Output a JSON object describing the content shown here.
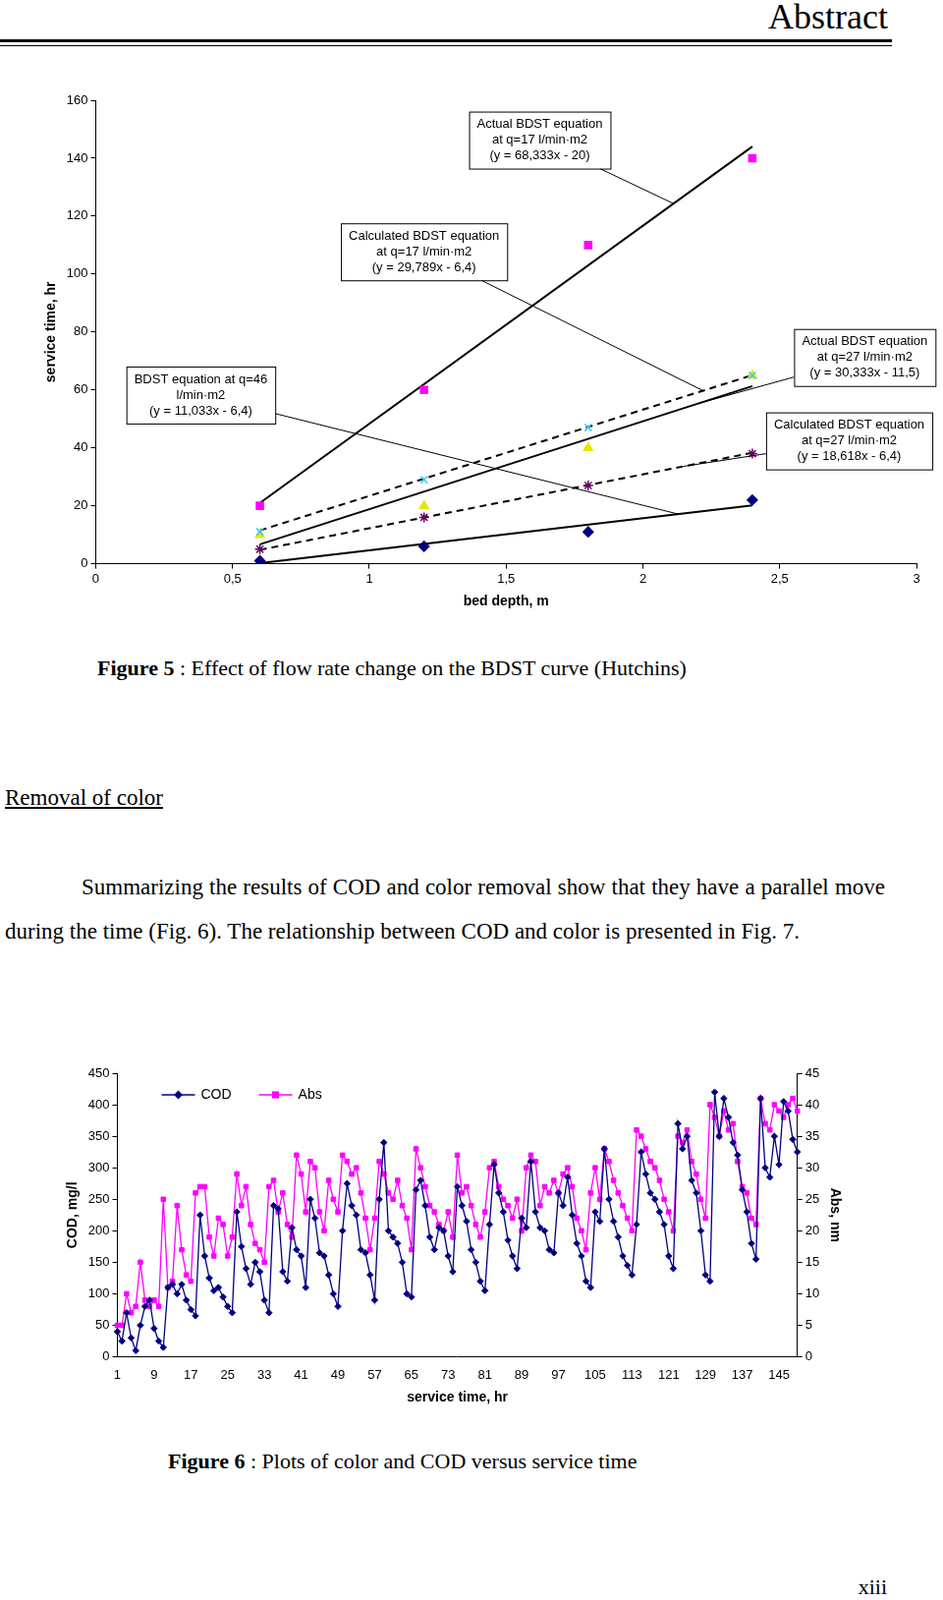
{
  "document": {
    "header": "Abstract",
    "figure_5_caption": {
      "label": "Figure 5",
      "text": ": Effect of flow rate change on the BDST curve (Hutchins)"
    },
    "section_heading": "Removal of color",
    "paragraph": "Summarizing the results of COD and color removal show that they have a parallel move during the time (Fig. 6). The relationship between COD and color is presented in Fig. 7.",
    "figure_6_caption": {
      "label": "Figure 6",
      "text": ": Plots of color and COD versus service time"
    },
    "page_number": "xiii"
  },
  "chart_data": [
    {
      "type": "scatter",
      "x_label": "bed depth, m",
      "y_label": "service time, hr",
      "xlim": [
        0,
        3
      ],
      "xticks": [
        0,
        {
          "value": 0.5,
          "label": "0,5"
        },
        1,
        {
          "value": 1.5,
          "label": "1,5"
        },
        2,
        {
          "value": 2.5,
          "label": "2,5"
        },
        3
      ],
      "ylim": [
        0,
        160
      ],
      "yticks": [
        0,
        20,
        40,
        60,
        80,
        100,
        120,
        140,
        160
      ],
      "grid": false,
      "series": [
        {
          "type": "scatter",
          "marker": "square",
          "color": "#ff00ff",
          "x": [
            0.6,
            1.2,
            1.8,
            2.4
          ],
          "values": [
            20,
            60,
            110,
            140
          ]
        },
        {
          "type": "scatter",
          "marker": "x",
          "color": "#33ccff",
          "x": [
            0.6,
            1.2,
            1.8,
            2.4
          ],
          "values": [
            11,
            29,
            47,
            65
          ]
        },
        {
          "type": "scatter",
          "marker": "triangle",
          "color": "#e6e600",
          "x": [
            0.6,
            1.2,
            1.8,
            2.4
          ],
          "values": [
            10,
            20,
            40,
            65
          ]
        },
        {
          "type": "scatter",
          "marker": "asterisk",
          "color": "#660066",
          "x": [
            0.6,
            1.2,
            1.8,
            2.4
          ],
          "values": [
            5,
            16,
            27,
            38
          ]
        },
        {
          "type": "scatter",
          "marker": "diamond",
          "color": "#000080",
          "x": [
            0.6,
            1.2,
            1.8,
            2.4
          ],
          "values": [
            1,
            6,
            11,
            22
          ]
        },
        {
          "type": "line",
          "line_style": "solid",
          "color": "#000000",
          "x": [
            0.6,
            2.4
          ],
          "values": [
            21,
            144
          ]
        },
        {
          "type": "line",
          "line_style": "dashed",
          "color": "#000000",
          "x": [
            0.6,
            2.4
          ],
          "values": [
            11.5,
            65.1
          ]
        },
        {
          "type": "line",
          "line_style": "solid",
          "color": "#000000",
          "x": [
            0.6,
            2.4
          ],
          "values": [
            6.7,
            61.3
          ]
        },
        {
          "type": "line",
          "line_style": "dashed",
          "color": "#000000",
          "x": [
            0.6,
            2.4
          ],
          "values": [
            4.8,
            38.3
          ]
        },
        {
          "type": "line",
          "line_style": "solid",
          "color": "#000000",
          "x": [
            0.6,
            2.4
          ],
          "values": [
            0.2,
            20.1
          ]
        }
      ],
      "annotations": [
        {
          "text": [
            "Actual BDST equation",
            "at q=17 l/min·m2",
            "(y = 68,333x - 20)"
          ]
        },
        {
          "text": [
            "Calculated BDST equation",
            "at q=17 l/min·m2",
            "(y = 29,789x - 6,4)"
          ]
        },
        {
          "text": [
            "BDST equation at q=46",
            "l/min·m2",
            "(y = 11,033x - 6,4)"
          ]
        },
        {
          "text": [
            "Actual BDST equation",
            "at q=27 l/min·m2",
            "(y = 30,333x - 11,5)"
          ]
        },
        {
          "text": [
            "Calculated BDST equation",
            "at q=27 l/min·m2",
            "(y = 18,618x - 6,4)"
          ]
        }
      ]
    },
    {
      "type": "line",
      "x_label": "service time, hr",
      "y_label": "COD, mg/l",
      "y2_label": "Abs, nm",
      "categories": [
        1,
        null,
        null,
        null,
        null,
        null,
        null,
        null,
        9,
        null,
        null,
        null,
        null,
        null,
        null,
        null,
        17,
        null,
        null,
        null,
        null,
        null,
        null,
        null,
        25,
        null,
        null,
        null,
        null,
        null,
        null,
        null,
        33,
        null,
        null,
        null,
        null,
        null,
        null,
        null,
        41,
        null,
        null,
        null,
        null,
        null,
        null,
        null,
        49,
        null,
        null,
        null,
        null,
        null,
        null,
        null,
        57,
        null,
        null,
        null,
        null,
        null,
        null,
        null,
        65,
        null,
        null,
        null,
        null,
        null,
        null,
        null,
        73,
        null,
        null,
        null,
        null,
        null,
        null,
        null,
        81,
        null,
        null,
        null,
        null,
        null,
        null,
        null,
        89,
        null,
        null,
        null,
        null,
        null,
        null,
        null,
        97,
        null,
        null,
        null,
        null,
        null,
        null,
        null,
        105,
        null,
        null,
        null,
        null,
        null,
        null,
        null,
        113,
        null,
        null,
        null,
        null,
        null,
        null,
        null,
        121,
        null,
        null,
        null,
        null,
        null,
        null,
        null,
        129,
        null,
        null,
        null,
        null,
        null,
        null,
        null,
        137,
        null,
        null,
        null,
        null,
        null,
        null,
        null,
        145,
        null,
        null,
        null,
        null
      ],
      "ylim": [
        0,
        450
      ],
      "yticks": [
        0,
        50,
        100,
        150,
        200,
        250,
        300,
        350,
        400,
        450
      ],
      "y2lim": [
        0,
        45
      ],
      "y2ticks": [
        0,
        5,
        10,
        15,
        20,
        25,
        30,
        35,
        40,
        45
      ],
      "grid": false,
      "legend": "upper left",
      "series": [
        {
          "name": "COD",
          "color": "#000080",
          "marker": "diamond",
          "line_style": "solid",
          "values": [
            40,
            25,
            70,
            30,
            10,
            50,
            80,
            90,
            45,
            25,
            15,
            110,
            115,
            100,
            115,
            90,
            75,
            65,
            225,
            160,
            125,
            105,
            110,
            95,
            80,
            70,
            230,
            175,
            140,
            115,
            150,
            135,
            90,
            70,
            240,
            235,
            135,
            120,
            205,
            170,
            160,
            110,
            250,
            220,
            165,
            160,
            130,
            100,
            80,
            200,
            275,
            240,
            225,
            170,
            165,
            130,
            90,
            250,
            340,
            200,
            190,
            180,
            150,
            100,
            95,
            265,
            280,
            240,
            190,
            170,
            205,
            200,
            160,
            135,
            270,
            240,
            215,
            170,
            150,
            120,
            105,
            210,
            305,
            260,
            230,
            185,
            160,
            140,
            220,
            205,
            310,
            230,
            205,
            200,
            170,
            165,
            260,
            240,
            285,
            225,
            180,
            160,
            120,
            110,
            230,
            215,
            330,
            250,
            215,
            190,
            160,
            145,
            130,
            210,
            325,
            290,
            260,
            250,
            230,
            210,
            160,
            140,
            370,
            330,
            350,
            280,
            260,
            200,
            130,
            120,
            420,
            350,
            410,
            380,
            340,
            320,
            265,
            230,
            180,
            155,
            410,
            300,
            285,
            350,
            305,
            405,
            390,
            345,
            325
          ]
        },
        {
          "name": "Abs",
          "color": "#ff00ff",
          "marker": "square",
          "line_style": "solid",
          "axis": "y2",
          "values": [
            5,
            5,
            10,
            7,
            8,
            15,
            9,
            8,
            9,
            8,
            25,
            11,
            12,
            24,
            17,
            13,
            12,
            26,
            27,
            27,
            19,
            16,
            22,
            21,
            16,
            19,
            29,
            24,
            27,
            21,
            18,
            17,
            15,
            27,
            28,
            23,
            26,
            21,
            19,
            32,
            29,
            23,
            31,
            30,
            23,
            20,
            28,
            25,
            23,
            32,
            31,
            29,
            30,
            26,
            22,
            17,
            22,
            31,
            29,
            26,
            25,
            28,
            24,
            22,
            17,
            33,
            30,
            27,
            24,
            23,
            21,
            20,
            23,
            19,
            32,
            26,
            27,
            24,
            21,
            19,
            23,
            30,
            31,
            27,
            25,
            24,
            22,
            25,
            20,
            30,
            32,
            31,
            24,
            27,
            26,
            28,
            26,
            29,
            30,
            27,
            22,
            20,
            17,
            26,
            30,
            25,
            33,
            31,
            28,
            26,
            24,
            22,
            20,
            36,
            35,
            33,
            31,
            30,
            28,
            25,
            23,
            20,
            35,
            34,
            36,
            31,
            29,
            25,
            22,
            40,
            38,
            35,
            39,
            36,
            37,
            31,
            27,
            26,
            22,
            21,
            41,
            37,
            36,
            40,
            39,
            38,
            40,
            41,
            39
          ]
        }
      ]
    }
  ]
}
